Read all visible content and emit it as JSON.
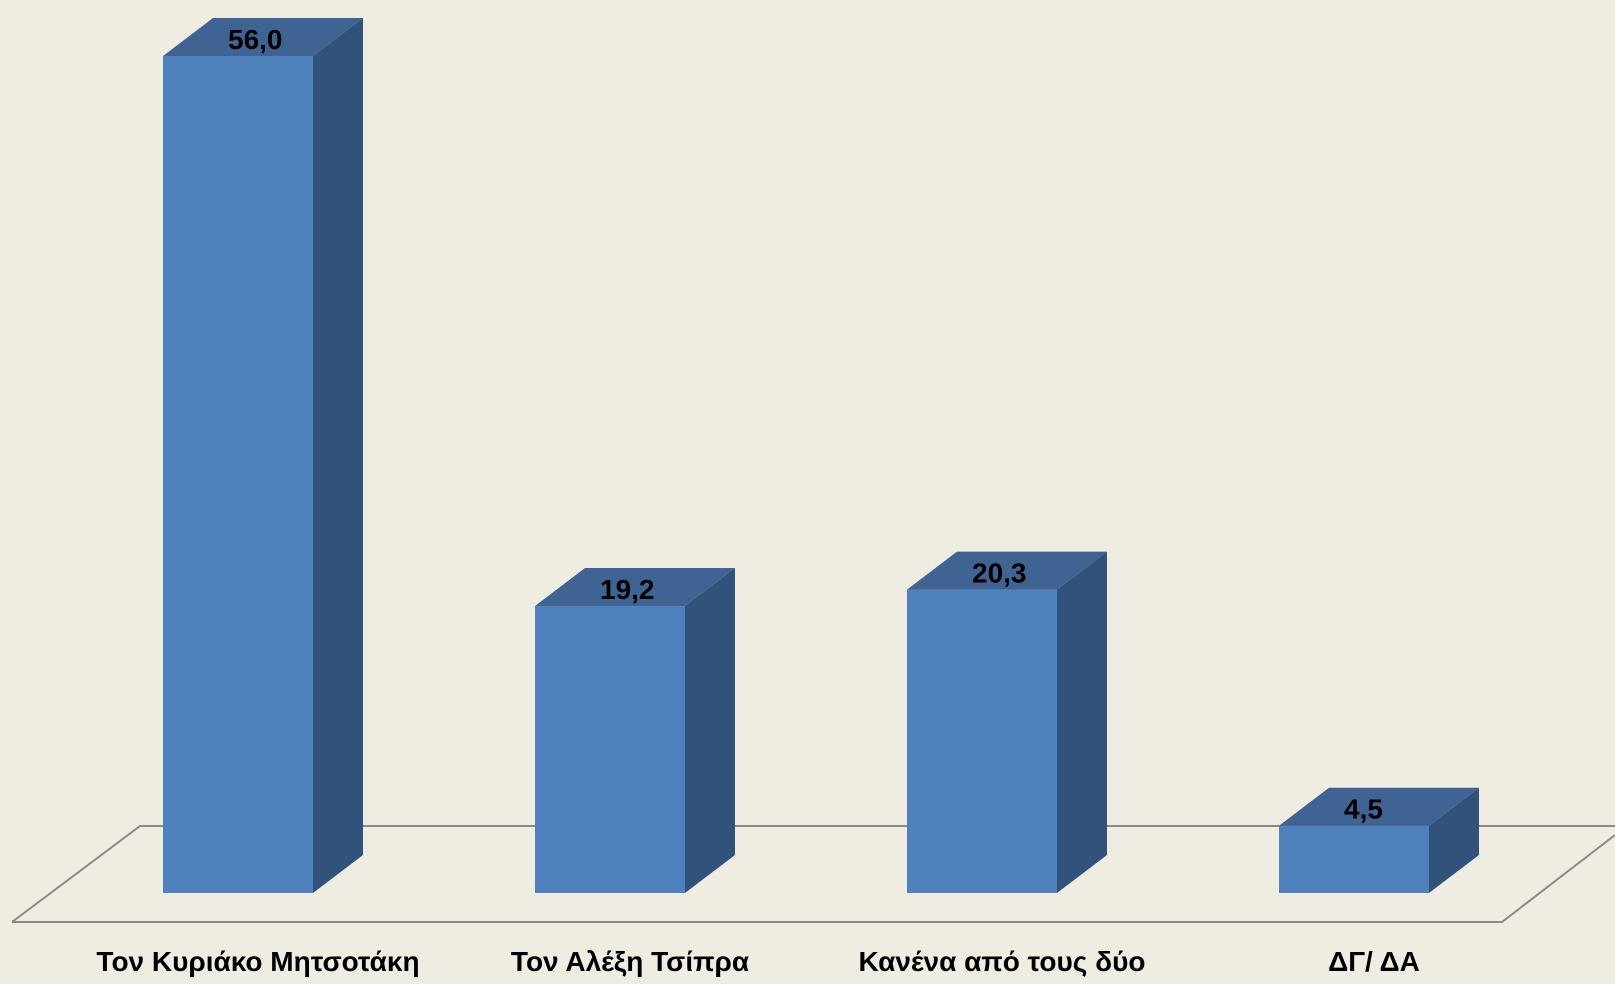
{
  "chart_data": {
    "type": "bar",
    "style": "3d-column",
    "categories": [
      "Τον Κυριάκο Μητσοτάκη",
      "Τον Αλέξη Τσίπρα",
      "Κανένα από τους δύο",
      "ΔΓ/ ΔΑ"
    ],
    "values": [
      56.0,
      19.2,
      20.3,
      4.5
    ],
    "value_labels": [
      "56,0",
      "19,2",
      "20,3",
      "4,5"
    ],
    "title": "",
    "xlabel": "",
    "ylabel": "",
    "ylim": [
      0,
      60
    ],
    "grid": false,
    "legend": "none",
    "colors": {
      "background": "#efece2",
      "bar_front": "#4f81bd",
      "bar_side": "#31527a",
      "bar_top": "#3f6393",
      "floor_line": "#8a8a8a",
      "text": "#000000"
    }
  }
}
